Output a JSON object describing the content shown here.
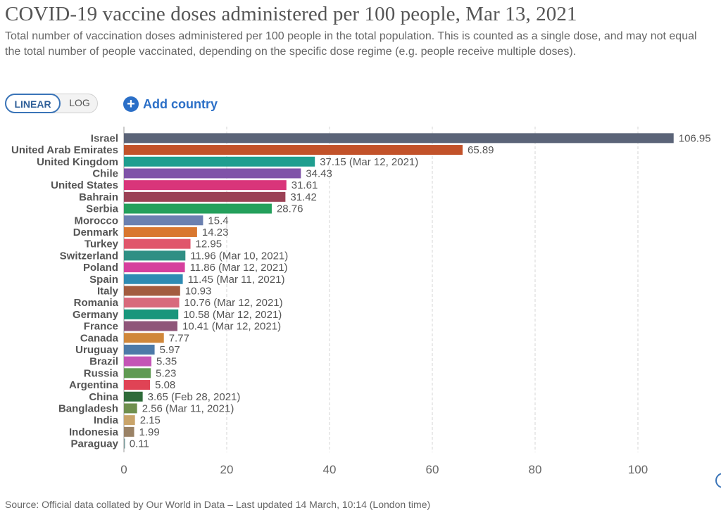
{
  "header": {
    "title": "COVID-19 vaccine doses administered per 100 people, Mar 13, 2021",
    "subtitle": "Total number of vaccination doses administered per 100 people in the total population. This is counted as a single dose, and may not equal the total number of people vaccinated, depending on the specific dose regime (e.g. people receive multiple doses)."
  },
  "controls": {
    "linear_label": "LINEAR",
    "log_label": "LOG",
    "add_country_label": "Add country",
    "add_icon": "plus-circle-icon"
  },
  "footer": {
    "source": "Source: Official data collated by Our World in Data – Last updated 14 March, 10:14 (London time)"
  },
  "chart_data": {
    "type": "bar",
    "orientation": "horizontal",
    "xlim": [
      0,
      110
    ],
    "xticks": [
      0,
      20,
      40,
      60,
      80,
      100
    ],
    "grid": "vertical dashed",
    "bars": [
      {
        "label": "Israel",
        "value": 106.95,
        "display": "106.95",
        "color": "#5b6478"
      },
      {
        "label": "United Arab Emirates",
        "value": 65.89,
        "display": "65.89",
        "color": "#c2522a"
      },
      {
        "label": "United Kingdom",
        "value": 37.15,
        "display": "37.15 (Mar 12, 2021)",
        "color": "#1f9e8f"
      },
      {
        "label": "Chile",
        "value": 34.43,
        "display": "34.43",
        "color": "#7f53a8"
      },
      {
        "label": "United States",
        "value": 31.61,
        "display": "31.61",
        "color": "#d9357a"
      },
      {
        "label": "Bahrain",
        "value": 31.42,
        "display": "31.42",
        "color": "#9b4155"
      },
      {
        "label": "Serbia",
        "value": 28.76,
        "display": "28.76",
        "color": "#24a05c"
      },
      {
        "label": "Morocco",
        "value": 15.4,
        "display": "15.4",
        "color": "#6b80b0"
      },
      {
        "label": "Denmark",
        "value": 14.23,
        "display": "14.23",
        "color": "#d9772f"
      },
      {
        "label": "Turkey",
        "value": 12.95,
        "display": "12.95",
        "color": "#e0566b"
      },
      {
        "label": "Switzerland",
        "value": 11.96,
        "display": "11.96 (Mar 10, 2021)",
        "color": "#2f8f84"
      },
      {
        "label": "Poland",
        "value": 11.86,
        "display": "11.86 (Mar 12, 2021)",
        "color": "#d63f9d"
      },
      {
        "label": "Spain",
        "value": 11.45,
        "display": "11.45 (Mar 11, 2021)",
        "color": "#2e8bb3"
      },
      {
        "label": "Italy",
        "value": 10.93,
        "display": "10.93",
        "color": "#a35c3f"
      },
      {
        "label": "Romania",
        "value": 10.76,
        "display": "10.76 (Mar 12, 2021)",
        "color": "#d86a7c"
      },
      {
        "label": "Germany",
        "value": 10.58,
        "display": "10.58 (Mar 12, 2021)",
        "color": "#19967c"
      },
      {
        "label": "France",
        "value": 10.41,
        "display": "10.41 (Mar 12, 2021)",
        "color": "#8f5679"
      },
      {
        "label": "Canada",
        "value": 7.77,
        "display": "7.77",
        "color": "#d0873a"
      },
      {
        "label": "Uruguay",
        "value": 5.97,
        "display": "5.97",
        "color": "#4d7aa8"
      },
      {
        "label": "Brazil",
        "value": 5.35,
        "display": "5.35",
        "color": "#c455b6"
      },
      {
        "label": "Russia",
        "value": 5.23,
        "display": "5.23",
        "color": "#5f9a52"
      },
      {
        "label": "Argentina",
        "value": 5.08,
        "display": "5.08",
        "color": "#e04355"
      },
      {
        "label": "China",
        "value": 3.65,
        "display": "3.65 (Feb 28, 2021)",
        "color": "#2f6b3a"
      },
      {
        "label": "Bangladesh",
        "value": 2.56,
        "display": "2.56 (Mar 11, 2021)",
        "color": "#6f8f4e"
      },
      {
        "label": "India",
        "value": 2.15,
        "display": "2.15",
        "color": "#c9a46a"
      },
      {
        "label": "Indonesia",
        "value": 1.99,
        "display": "1.99",
        "color": "#9a8266"
      },
      {
        "label": "Paraguay",
        "value": 0.11,
        "display": "0.11",
        "color": "#7a9a9a"
      }
    ]
  }
}
